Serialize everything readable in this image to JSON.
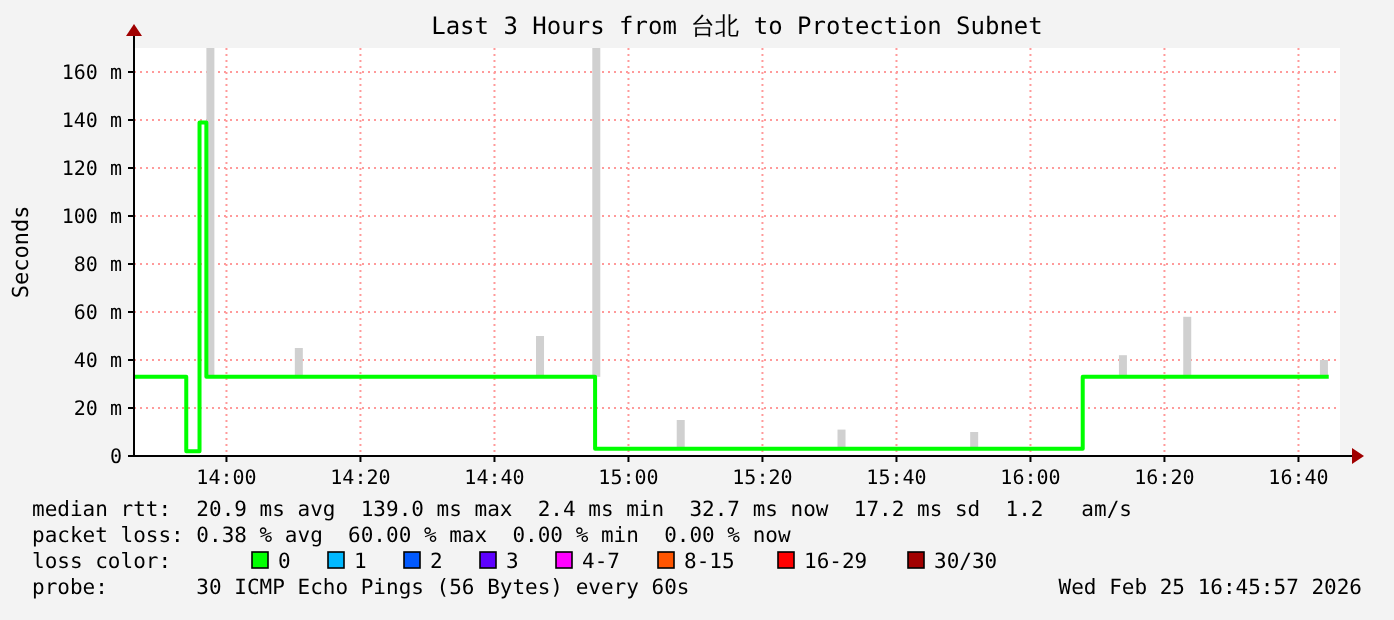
{
  "chart_data": {
    "type": "step",
    "title": "Last 3 Hours from 台北 to Protection Subnet",
    "ylabel": "Seconds",
    "legend_title": "loss color:",
    "legend": "bottom",
    "grid": true,
    "xlim": [
      13.77,
      16.77
    ],
    "xticks": [
      {
        "value": 14,
        "label": "14:00"
      },
      {
        "value": 14.3333,
        "label": "14:20"
      },
      {
        "value": 14.6667,
        "label": "14:40"
      },
      {
        "value": 15,
        "label": "15:00"
      },
      {
        "value": 15.3333,
        "label": "15:20"
      },
      {
        "value": 15.6667,
        "label": "15:40"
      },
      {
        "value": 16,
        "label": "16:00"
      },
      {
        "value": 16.3333,
        "label": "16:20"
      },
      {
        "value": 16.6667,
        "label": "16:40"
      }
    ],
    "ylim": [
      0,
      170
    ],
    "yticks": [
      0,
      {
        "value": 20,
        "label": "20 m"
      },
      {
        "value": 40,
        "label": "40 m"
      },
      {
        "value": 60,
        "label": "60 m"
      },
      {
        "value": 80,
        "label": "80 m"
      },
      {
        "value": 100,
        "label": "100 m"
      },
      {
        "value": 120,
        "label": "120 m"
      },
      {
        "value": 140,
        "label": "140 m"
      },
      {
        "value": 160,
        "label": "160 m"
      }
    ],
    "series": [
      {
        "type": "bar",
        "color": "#d0d0d0",
        "x": [
          13.96,
          14.18,
          14.78,
          14.92,
          15.13,
          15.53,
          15.86,
          16.23,
          16.39,
          16.73
        ],
        "base": [
          33,
          33,
          33,
          33,
          3,
          3,
          3,
          33,
          33,
          33
        ],
        "values": [
          137,
          12,
          17,
          137,
          12,
          8,
          7,
          9,
          25,
          7
        ]
      },
      {
        "name": "0",
        "color": "#00ff00",
        "x": [
          13.77,
          13.9,
          13.933,
          13.95,
          14.917,
          16.13,
          16.742
        ],
        "values": [
          33,
          2,
          139,
          33,
          3,
          33,
          33
        ]
      },
      {
        "name": "1",
        "color": "#00b8ff"
      },
      {
        "name": "2",
        "color": "#0059ff"
      },
      {
        "name": "3",
        "color": "#5e00ff"
      },
      {
        "name": "4-7",
        "color": "#ff00ff"
      },
      {
        "name": "8-15",
        "color": "#ff5500"
      },
      {
        "name": "16-29",
        "color": "#ff0000"
      },
      {
        "name": "30/30",
        "color": "#a10000"
      }
    ],
    "annotations": [
      "median rtt:  20.9 ms avg  139.0 ms max  2.4 ms min  32.7 ms now  17.2 ms sd  1.2   am/s",
      "packet loss: 0.38 % avg  60.00 % max  0.00 % min  0.00 % now",
      "probe:       30 ICMP Echo Pings (56 Bytes) every 60s",
      "Wed Feb 25 16:45:57 2026"
    ]
  }
}
